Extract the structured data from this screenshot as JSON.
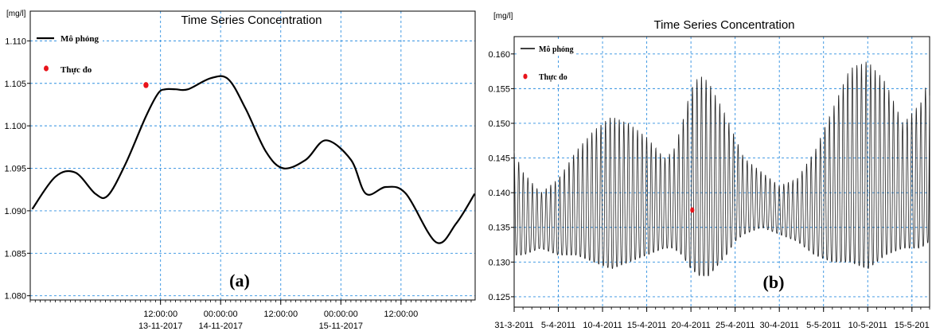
{
  "chart_data": [
    {
      "type": "line",
      "panel_label": "(a)",
      "title": "Time Series Concentration",
      "unit_label": "[mg/l]",
      "xlabel": "",
      "ylabel": "",
      "ylim": [
        1.0795,
        1.1135
      ],
      "y_ticks": [
        "1.080",
        "1.085",
        "1.090",
        "1.095",
        "1.100",
        "1.105",
        "1.110"
      ],
      "x_tick_labels": [
        {
          "line1": "12:00:00",
          "line2": "13-11-2017"
        },
        {
          "line1": "00:00:00",
          "line2": "14-11-2017"
        },
        {
          "line1": "12:00:00",
          "line2": ""
        },
        {
          "line1": "00:00:00",
          "line2": "15-11-2017"
        },
        {
          "line1": "12:00:00",
          "line2": ""
        }
      ],
      "grid": true,
      "legend": "top-left",
      "series": [
        {
          "name": "Mô phỏng",
          "style": "line",
          "color": "#000000",
          "x_hours": [
            -13.6,
            -9,
            -5,
            -1,
            1.5,
            5,
            9,
            11.5,
            13,
            15,
            17.5,
            22,
            25.5,
            29,
            33,
            36.5,
            41,
            45,
            50,
            53,
            57,
            61,
            67,
            71,
            74.7
          ],
          "values": [
            1.0902,
            1.094,
            1.0945,
            1.092,
            1.0918,
            1.0955,
            1.101,
            1.1038,
            1.1043,
            1.1043,
            1.1043,
            1.1056,
            1.1055,
            1.102,
            1.097,
            1.095,
            1.096,
            1.0983,
            1.096,
            1.092,
            1.0928,
            1.092,
            1.0863,
            1.0885,
            1.092
          ]
        },
        {
          "name": "Thực đo",
          "style": "marker",
          "color": "#e8141b",
          "x_hours": [
            9.1
          ],
          "values": [
            1.1048
          ]
        }
      ]
    },
    {
      "type": "line",
      "panel_label": "(b)",
      "title": "Time Series Concentration",
      "unit_label": "[mg/l]",
      "xlabel": "",
      "ylabel": "",
      "ylim": [
        0.1235,
        0.1625
      ],
      "y_ticks": [
        "0.125",
        "0.130",
        "0.135",
        "0.140",
        "0.145",
        "0.150",
        "0.155",
        "0.160"
      ],
      "x_tick_labels": [
        "31-3-2011",
        "5-4-2011",
        "10-4-2011",
        "15-4-2011",
        "20-4-2011",
        "25-4-2011",
        "30-4-2011",
        "5-5-2011",
        "10-5-2011",
        "15-5-201"
      ],
      "grid": true,
      "legend": "top-left",
      "series": [
        {
          "name": "Mô phỏng",
          "style": "line",
          "color": "#000000",
          "oscillation_period_days": 0.517,
          "envelope_days": [
            0,
            1,
            3,
            5,
            7,
            9,
            11,
            13,
            15,
            17,
            18,
            19,
            20,
            21,
            22,
            24,
            25,
            26,
            28,
            30,
            32,
            34,
            36,
            38,
            40,
            42,
            44,
            46,
            47
          ],
          "envelope_high": [
            0.146,
            0.143,
            0.14,
            0.142,
            0.146,
            0.149,
            0.151,
            0.15,
            0.148,
            0.145,
            0.146,
            0.15,
            0.155,
            0.157,
            0.156,
            0.151,
            0.148,
            0.145,
            0.143,
            0.141,
            0.142,
            0.146,
            0.152,
            0.158,
            0.159,
            0.156,
            0.15,
            0.153,
            0.157
          ],
          "envelope_low": [
            0.131,
            0.131,
            0.132,
            0.131,
            0.131,
            0.13,
            0.129,
            0.13,
            0.131,
            0.132,
            0.132,
            0.131,
            0.129,
            0.128,
            0.128,
            0.131,
            0.133,
            0.134,
            0.135,
            0.134,
            0.133,
            0.131,
            0.13,
            0.13,
            0.129,
            0.131,
            0.132,
            0.132,
            0.133
          ]
        },
        {
          "name": "Thực đo",
          "style": "marker",
          "color": "#e8141b",
          "x_days": [
            20.15
          ],
          "values": [
            0.1375
          ]
        }
      ]
    }
  ]
}
